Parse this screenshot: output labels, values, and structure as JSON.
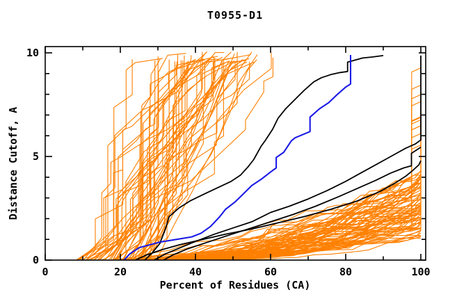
{
  "chart_data": {
    "type": "line",
    "title": "T0955-D1",
    "xlabel": "Percent of Residues (CA)",
    "ylabel": "Distance Cutoff, A",
    "xlim": [
      0,
      100
    ],
    "ylim": [
      0,
      10
    ],
    "grid": false,
    "legend": "none",
    "x_ticks": {
      "major": [
        0,
        20,
        40,
        60,
        80,
        100
      ],
      "minor": [
        10,
        30,
        50,
        70,
        90
      ]
    },
    "y_ticks": {
      "major": [
        0,
        5,
        10
      ],
      "minor": [
        1,
        2,
        3,
        4,
        6,
        7,
        8,
        9
      ]
    },
    "x_tick_labels": [
      "0",
      "20",
      "40",
      "60",
      "80",
      "100"
    ],
    "y_tick_labels": [
      "0",
      "5",
      "10"
    ],
    "colors": {
      "background": "#ffffff",
      "frame": "#000000",
      "ensemble": "#ff8000",
      "highlight": "#000000",
      "reference": "#1a1ae6"
    },
    "highlighted_series": [
      {
        "name": "black-model-1",
        "role": "highlight",
        "color": "#000000",
        "points": [
          [
            26.5,
            0
          ],
          [
            28.5,
            0.35
          ],
          [
            30.5,
            0.8
          ],
          [
            32,
            1.5
          ],
          [
            33,
            2.1
          ],
          [
            35.5,
            2.5
          ],
          [
            38.5,
            2.85
          ],
          [
            42.5,
            3.2
          ],
          [
            46,
            3.5
          ],
          [
            49.5,
            3.8
          ],
          [
            52,
            4.1
          ],
          [
            54,
            4.5
          ],
          [
            55.5,
            4.85
          ],
          [
            57.5,
            5.5
          ],
          [
            58.5,
            5.75
          ],
          [
            60.5,
            6.3
          ],
          [
            62,
            6.85
          ],
          [
            64,
            7.3
          ],
          [
            66.5,
            7.75
          ],
          [
            69,
            8.2
          ],
          [
            71.5,
            8.6
          ],
          [
            73.5,
            8.8
          ],
          [
            76,
            8.95
          ],
          [
            78.5,
            9.05
          ],
          [
            80.5,
            9.1
          ],
          [
            80.5,
            9.55
          ],
          [
            82.5,
            9.65
          ],
          [
            84.5,
            9.75
          ],
          [
            87,
            9.8
          ],
          [
            90,
            9.87
          ]
        ]
      },
      {
        "name": "black-model-2",
        "role": "highlight",
        "color": "#000000",
        "points": [
          [
            29,
            0
          ],
          [
            32,
            0.3
          ],
          [
            36,
            0.6
          ],
          [
            40,
            0.9
          ],
          [
            45,
            1.25
          ],
          [
            50,
            1.55
          ],
          [
            55,
            1.85
          ],
          [
            60,
            2.3
          ],
          [
            65,
            2.6
          ],
          [
            70,
            2.95
          ],
          [
            75,
            3.35
          ],
          [
            80,
            3.8
          ],
          [
            84,
            4.2
          ],
          [
            87.5,
            4.55
          ],
          [
            90.5,
            4.85
          ],
          [
            93,
            5.1
          ],
          [
            96,
            5.4
          ],
          [
            98.5,
            5.6
          ],
          [
            100,
            5.8
          ],
          [
            100,
            9.87
          ]
        ]
      },
      {
        "name": "black-model-3",
        "role": "highlight",
        "color": "#000000",
        "points": [
          [
            31.5,
            0
          ],
          [
            34,
            0.25
          ],
          [
            38,
            0.55
          ],
          [
            43,
            0.85
          ],
          [
            48,
            1.15
          ],
          [
            54,
            1.5
          ],
          [
            60,
            1.85
          ],
          [
            66,
            2.2
          ],
          [
            72,
            2.6
          ],
          [
            78,
            3.05
          ],
          [
            83,
            3.45
          ],
          [
            88,
            3.85
          ],
          [
            92,
            4.2
          ],
          [
            95.5,
            4.45
          ],
          [
            97.5,
            4.55
          ],
          [
            97.5,
            5.15
          ],
          [
            100,
            5.45
          ]
        ]
      },
      {
        "name": "black-model-4",
        "role": "highlight",
        "color": "#000000",
        "points": [
          [
            24,
            0
          ],
          [
            27,
            0.25
          ],
          [
            31,
            0.5
          ],
          [
            36,
            0.75
          ],
          [
            42,
            1.0
          ],
          [
            48,
            1.25
          ],
          [
            55,
            1.5
          ],
          [
            62,
            1.8
          ],
          [
            69,
            2.1
          ],
          [
            76,
            2.45
          ],
          [
            83,
            2.85
          ],
          [
            89,
            3.3
          ],
          [
            93,
            3.7
          ],
          [
            96,
            4.05
          ],
          [
            98,
            4.35
          ],
          [
            99.5,
            4.6
          ],
          [
            100,
            4.8
          ]
        ]
      },
      {
        "name": "blue-model",
        "role": "reference",
        "color": "#1a1ae6",
        "points": [
          [
            21,
            0
          ],
          [
            22.5,
            0.3
          ],
          [
            25,
            0.6
          ],
          [
            30.5,
            0.87
          ],
          [
            35,
            1.0
          ],
          [
            39,
            1.12
          ],
          [
            41.5,
            1.3
          ],
          [
            44,
            1.62
          ],
          [
            46.5,
            2.1
          ],
          [
            48,
            2.45
          ],
          [
            50.5,
            2.8
          ],
          [
            52.5,
            3.15
          ],
          [
            55,
            3.6
          ],
          [
            57.5,
            3.9
          ],
          [
            60,
            4.25
          ],
          [
            61.5,
            4.45
          ],
          [
            61.5,
            4.95
          ],
          [
            63.5,
            5.2
          ],
          [
            65.5,
            5.75
          ],
          [
            66.5,
            5.9
          ],
          [
            70.5,
            6.2
          ],
          [
            70.5,
            6.9
          ],
          [
            73,
            7.3
          ],
          [
            75.5,
            7.6
          ],
          [
            77.5,
            7.95
          ],
          [
            80,
            8.35
          ],
          [
            81.3,
            8.5
          ],
          [
            81.3,
            9.9
          ]
        ]
      }
    ],
    "ensemble": {
      "name": "server-model-curves",
      "color": "#ff8000",
      "seed": 1234567,
      "x_step": 2.439,
      "low_group": {
        "count": 80,
        "start_x": [
          17,
          45
        ],
        "end_y": [
          1.05,
          4.35
        ],
        "convexity": [
          1.25,
          2.35
        ],
        "tail_jump_fraction": 0.18,
        "tail_jump_y": [
          5.0,
          9.6
        ]
      },
      "steep_group": {
        "count": 56,
        "start_x": [
          8,
          30
        ],
        "slope": [
          0.1,
          0.5
        ],
        "top_y": [
          9.55,
          10.05
        ],
        "jump_prob": 0.42,
        "jump_size": [
          0.45,
          2.35
        ],
        "min_top_exit_x": 45
      }
    }
  }
}
